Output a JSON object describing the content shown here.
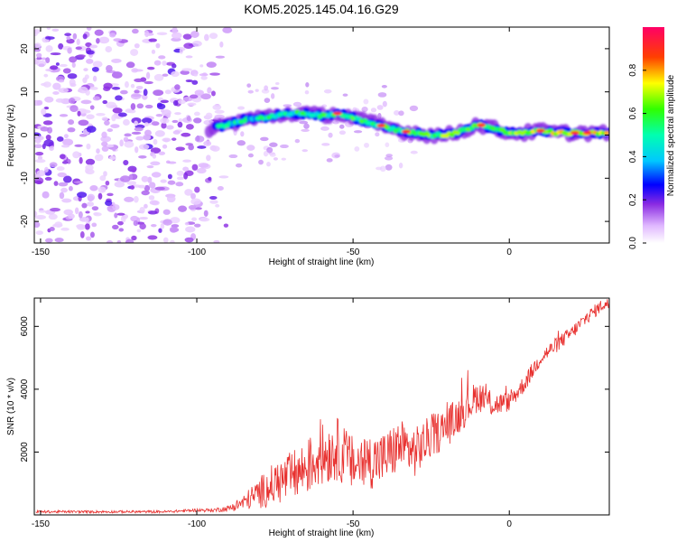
{
  "title": "KOM5.2025.145.04.16.G29",
  "chart_data": [
    {
      "type": "heatmap",
      "xlabel": "Height of straight line (km)",
      "ylabel": "Frequency (Hz)",
      "xlim": [
        -152,
        32
      ],
      "ylim": [
        -25,
        25
      ],
      "xticks": [
        -150,
        -100,
        -50,
        0
      ],
      "yticks": [
        -20,
        -10,
        0,
        10,
        20
      ],
      "ridge": {
        "description_points_x": [
          -95,
          -90,
          -85,
          -80,
          -75,
          -70,
          -65,
          -60,
          -55,
          -50,
          -45,
          -40,
          -35,
          -30,
          -25,
          -20,
          -15,
          -10,
          -5,
          0,
          5,
          10,
          15,
          20,
          25,
          30
        ],
        "frequency_hz": [
          1.5,
          2.5,
          3.5,
          4.0,
          4.5,
          5.0,
          5.0,
          4.5,
          5.0,
          4.0,
          3.0,
          2.0,
          1.0,
          0.5,
          0.0,
          0.0,
          1.0,
          2.5,
          1.5,
          0.5,
          0.5,
          1.0,
          0.5,
          0.5,
          0.5,
          0.5
        ]
      },
      "noise_region_x": [
        -152,
        -90
      ],
      "colorbar": {
        "label": "Normalized spectral amplitude",
        "range": [
          0,
          1
        ],
        "ticks": [
          "0.0",
          "0.2",
          "0.4",
          "0.6",
          "0.8"
        ],
        "colors": [
          "#ffffff",
          "#cc66ff",
          "#0000ff",
          "#00ffff",
          "#00ff00",
          "#ffff00",
          "#ff0000",
          "#ff0066"
        ]
      }
    },
    {
      "type": "line",
      "xlabel": "Height of straight line (km)",
      "ylabel": "SNR (10 * v/v)",
      "xlim": [
        -152,
        32
      ],
      "ylim": [
        0,
        6900
      ],
      "xticks": [
        -150,
        -100,
        -50,
        0
      ],
      "yticks": [
        2000,
        4000,
        6000
      ],
      "series": [
        {
          "color": "#e8312f",
          "x": [
            -150,
            -140,
            -130,
            -120,
            -110,
            -100,
            -95,
            -90,
            -85,
            -80,
            -75,
            -70,
            -65,
            -60,
            -55,
            -50,
            -45,
            -40,
            -35,
            -30,
            -25,
            -20,
            -15,
            -10,
            -5,
            0,
            5,
            10,
            15,
            20,
            25,
            30
          ],
          "y": [
            100,
            100,
            100,
            100,
            100,
            150,
            150,
            200,
            400,
            700,
            1000,
            1200,
            1500,
            1900,
            2100,
            1600,
            1700,
            1800,
            2200,
            2000,
            2500,
            2800,
            3300,
            3800,
            3500,
            3600,
            4200,
            5000,
            5400,
            5800,
            6300,
            6700
          ],
          "noise_amplitude": [
            40,
            40,
            40,
            40,
            40,
            50,
            60,
            100,
            250,
            500,
            700,
            800,
            900,
            1000,
            1000,
            900,
            900,
            850,
            850,
            800,
            700,
            650,
            600,
            500,
            400,
            300,
            280,
            260,
            250,
            230,
            220,
            200
          ]
        }
      ]
    }
  ]
}
